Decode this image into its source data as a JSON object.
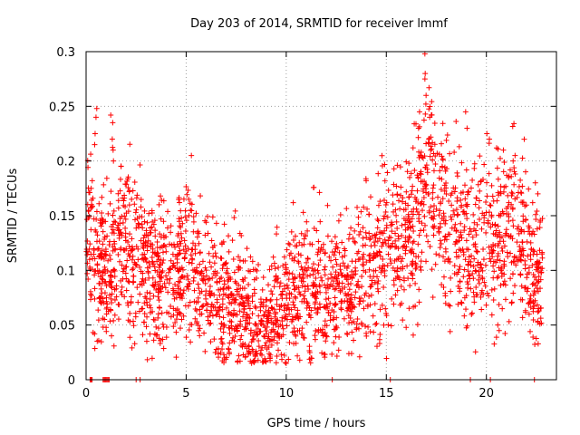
{
  "chart_data": {
    "type": "scatter",
    "title": "Day 203 of 2014, SRMTID for receiver lmmf",
    "xlabel": "GPS time / hours",
    "ylabel": "SRMTID / TECUs",
    "xlim": [
      0,
      23.5
    ],
    "ylim": [
      0,
      0.3
    ],
    "xticks": [
      0,
      5,
      10,
      15,
      20
    ],
    "xtick_labels": [
      "0",
      "5",
      "10",
      "15",
      "20"
    ],
    "yticks": [
      0,
      0.05,
      0.1,
      0.15,
      0.2,
      0.25,
      0.3
    ],
    "ytick_labels": [
      "0",
      "0.05",
      "0.1",
      "0.15",
      "0.2",
      "0.25",
      "0.3"
    ],
    "grid": true,
    "marker": "+",
    "color": "#ff0000",
    "trend": {
      "x": [
        0,
        0.5,
        1,
        1.5,
        2,
        2.5,
        3,
        3.5,
        4,
        4.5,
        5,
        5.5,
        6,
        6.5,
        7,
        7.5,
        8,
        8.5,
        9,
        9.5,
        10,
        10.5,
        11,
        11.5,
        12,
        12.5,
        13,
        13.5,
        14,
        14.5,
        15,
        15.5,
        16,
        16.5,
        17,
        17.5,
        18,
        18.5,
        19,
        19.5,
        20,
        20.5,
        21,
        21.5,
        22,
        22.5,
        22.8
      ],
      "y": [
        0.13,
        0.11,
        0.1,
        0.115,
        0.12,
        0.11,
        0.1,
        0.095,
        0.09,
        0.09,
        0.11,
        0.1,
        0.085,
        0.075,
        0.07,
        0.07,
        0.06,
        0.045,
        0.05,
        0.06,
        0.07,
        0.08,
        0.085,
        0.085,
        0.075,
        0.08,
        0.085,
        0.09,
        0.1,
        0.11,
        0.12,
        0.125,
        0.13,
        0.15,
        0.2,
        0.17,
        0.14,
        0.135,
        0.13,
        0.115,
        0.14,
        0.12,
        0.135,
        0.14,
        0.11,
        0.095,
        0.1
      ]
    },
    "spikes": [
      {
        "x": 0.25,
        "values": [
          0.16,
          0.175,
          0.182
        ]
      },
      {
        "x": 0.5,
        "values": [
          0.215,
          0.225,
          0.24,
          0.248
        ]
      },
      {
        "x": 1.3,
        "values": [
          0.2,
          0.21,
          0.22,
          0.235,
          0.242
        ]
      },
      {
        "x": 2.2,
        "values": [
          0.165,
          0.172
        ]
      },
      {
        "x": 3.7,
        "values": [
          0.16,
          0.168
        ]
      },
      {
        "x": 5.2,
        "values": [
          0.155,
          0.165
        ]
      },
      {
        "x": 16.6,
        "values": [
          0.23,
          0.245
        ]
      },
      {
        "x": 17.0,
        "values": [
          0.26,
          0.275,
          0.28,
          0.298
        ]
      },
      {
        "x": 17.2,
        "values": [
          0.22,
          0.24
        ]
      },
      {
        "x": 19.0,
        "values": [
          0.23,
          0.245
        ]
      },
      {
        "x": 20.1,
        "values": [
          0.22,
          0.225
        ]
      },
      {
        "x": 21.4,
        "values": [
          0.2,
          0.205
        ]
      },
      {
        "x": 22.5,
        "values": [
          0.17,
          0.18
        ]
      },
      {
        "x": 20.6,
        "values": [
          0.05,
          0.045
        ]
      },
      {
        "x": 22.3,
        "values": [
          0.065,
          0.07
        ]
      }
    ],
    "zero_points_x": [
      0.2,
      0.25,
      0.3,
      0.85,
      0.9,
      0.95,
      1.0,
      1.05,
      1.1,
      1.15,
      2.5,
      2.7,
      12.3,
      15.2,
      19.2,
      20.2,
      22.4
    ]
  }
}
